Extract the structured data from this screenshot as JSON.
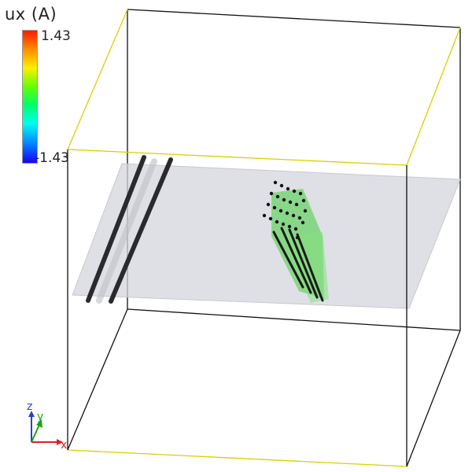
{
  "legend": {
    "title": "ux (A)",
    "max_label": "1.43",
    "min_label": "-1.43",
    "max_value": 1.43,
    "min_value": -1.43
  },
  "axes": {
    "x_label": "x",
    "y_label": "y",
    "z_label": "z",
    "x_color": "#e0201e",
    "y_color": "#1aa31a",
    "z_color": "#2a3fd6"
  },
  "colors": {
    "box_front_edges": "#111111",
    "box_back_top": "#e8e000",
    "slab_fill": "#d4d4de",
    "dislocation_line": "#2a2a2e",
    "atom_black": "#111111",
    "cluster_green": "#3fcf3a"
  }
}
